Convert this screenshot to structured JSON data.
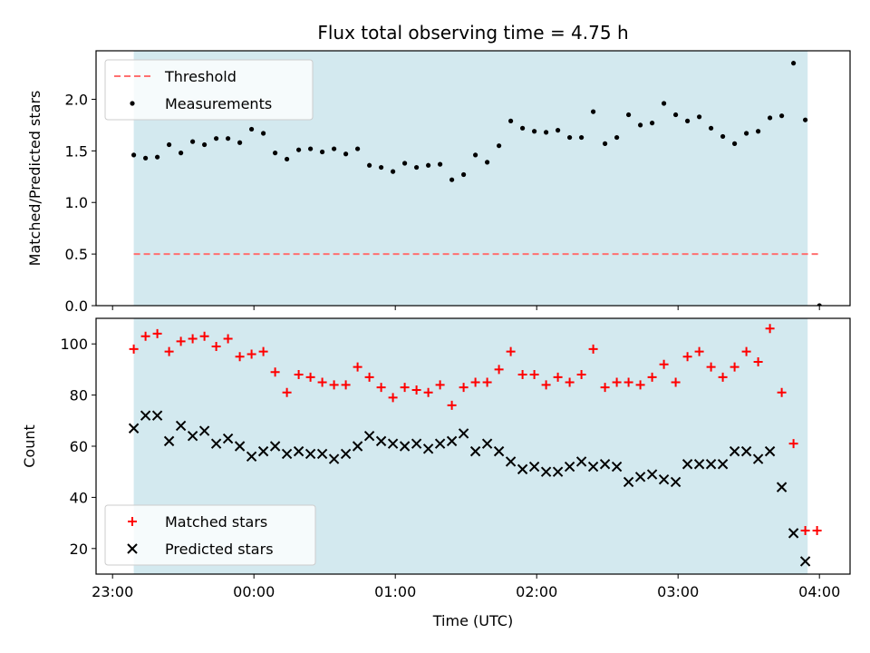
{
  "chart_data": {
    "title": "Flux total observing time = 4.75 h",
    "xlabel": "Time (UTC)",
    "x_tick_labels": [
      "23:00",
      "00:00",
      "01:00",
      "02:00",
      "03:00",
      "04:00"
    ],
    "x_ticks": [
      "23:00",
      "00:00",
      "01:00",
      "02:00",
      "03:00",
      "04:00"
    ],
    "xlim": [
      "22:53",
      "04:13"
    ],
    "shaded_interval": [
      "23:09",
      "03:55"
    ],
    "shade_color": "#d3e9ef",
    "panels": [
      {
        "type": "scatter",
        "ylabel": "Matched/Predicted stars",
        "ylim": [
          0,
          2.47
        ],
        "yticks": [
          0.0,
          0.5,
          1.0,
          1.5,
          2.0
        ],
        "ytick_labels": [
          "0.0",
          "0.5",
          "1.0",
          "1.5",
          "2.0"
        ],
        "legend_position": "upper-left",
        "threshold": {
          "name": "Threshold",
          "value": 0.5,
          "x": [
            "23:09",
            "04:00"
          ],
          "color": "#ff7070",
          "style": "dashed"
        },
        "series": [
          {
            "name": "Measurements",
            "marker": "dot",
            "color": "#000000",
            "points": [
              [
                "23:09",
                1.46
              ],
              [
                "23:14",
                1.43
              ],
              [
                "23:19",
                1.44
              ],
              [
                "23:24",
                1.56
              ],
              [
                "23:29",
                1.48
              ],
              [
                "23:34",
                1.59
              ],
              [
                "23:39",
                1.56
              ],
              [
                "23:44",
                1.62
              ],
              [
                "23:49",
                1.62
              ],
              [
                "23:54",
                1.58
              ],
              [
                "23:59",
                1.71
              ],
              [
                "00:04",
                1.67
              ],
              [
                "00:09",
                1.48
              ],
              [
                "00:14",
                1.42
              ],
              [
                "00:19",
                1.51
              ],
              [
                "00:24",
                1.52
              ],
              [
                "00:29",
                1.49
              ],
              [
                "00:34",
                1.52
              ],
              [
                "00:39",
                1.47
              ],
              [
                "00:44",
                1.52
              ],
              [
                "00:49",
                1.36
              ],
              [
                "00:54",
                1.34
              ],
              [
                "00:59",
                1.3
              ],
              [
                "01:04",
                1.38
              ],
              [
                "01:09",
                1.34
              ],
              [
                "01:14",
                1.36
              ],
              [
                "01:19",
                1.37
              ],
              [
                "01:24",
                1.22
              ],
              [
                "01:29",
                1.27
              ],
              [
                "01:34",
                1.46
              ],
              [
                "01:39",
                1.39
              ],
              [
                "01:44",
                1.55
              ],
              [
                "01:49",
                1.79
              ],
              [
                "01:54",
                1.72
              ],
              [
                "01:59",
                1.69
              ],
              [
                "02:04",
                1.68
              ],
              [
                "02:09",
                1.7
              ],
              [
                "02:14",
                1.63
              ],
              [
                "02:19",
                1.63
              ],
              [
                "02:24",
                1.88
              ],
              [
                "02:29",
                1.57
              ],
              [
                "02:34",
                1.63
              ],
              [
                "02:39",
                1.85
              ],
              [
                "02:44",
                1.75
              ],
              [
                "02:49",
                1.77
              ],
              [
                "02:54",
                1.96
              ],
              [
                "02:59",
                1.85
              ],
              [
                "03:04",
                1.79
              ],
              [
                "03:09",
                1.83
              ],
              [
                "03:14",
                1.72
              ],
              [
                "03:19",
                1.64
              ],
              [
                "03:24",
                1.57
              ],
              [
                "03:29",
                1.67
              ],
              [
                "03:34",
                1.69
              ],
              [
                "03:39",
                1.82
              ],
              [
                "03:44",
                1.84
              ],
              [
                "03:49",
                2.35
              ],
              [
                "03:54",
                1.8
              ],
              [
                "04:00",
                0.0
              ]
            ]
          }
        ]
      },
      {
        "type": "scatter",
        "ylabel": "Count",
        "ylim": [
          10,
          110
        ],
        "yticks": [
          20,
          40,
          60,
          80,
          100
        ],
        "ytick_labels": [
          "20",
          "40",
          "60",
          "80",
          "100"
        ],
        "legend_position": "lower-left",
        "series": [
          {
            "name": "Matched stars",
            "marker": "plus",
            "color": "#ff0000",
            "points": [
              [
                "23:09",
                98
              ],
              [
                "23:14",
                103
              ],
              [
                "23:19",
                104
              ],
              [
                "23:24",
                97
              ],
              [
                "23:29",
                101
              ],
              [
                "23:34",
                102
              ],
              [
                "23:39",
                103
              ],
              [
                "23:44",
                99
              ],
              [
                "23:49",
                102
              ],
              [
                "23:54",
                95
              ],
              [
                "23:59",
                96
              ],
              [
                "00:04",
                97
              ],
              [
                "00:09",
                89
              ],
              [
                "00:14",
                81
              ],
              [
                "00:19",
                88
              ],
              [
                "00:24",
                87
              ],
              [
                "00:29",
                85
              ],
              [
                "00:34",
                84
              ],
              [
                "00:39",
                84
              ],
              [
                "00:44",
                91
              ],
              [
                "00:49",
                87
              ],
              [
                "00:54",
                83
              ],
              [
                "00:59",
                79
              ],
              [
                "01:04",
                83
              ],
              [
                "01:09",
                82
              ],
              [
                "01:14",
                81
              ],
              [
                "01:19",
                84
              ],
              [
                "01:24",
                76
              ],
              [
                "01:29",
                83
              ],
              [
                "01:34",
                85
              ],
              [
                "01:39",
                85
              ],
              [
                "01:44",
                90
              ],
              [
                "01:49",
                97
              ],
              [
                "01:54",
                88
              ],
              [
                "01:59",
                88
              ],
              [
                "02:04",
                84
              ],
              [
                "02:09",
                87
              ],
              [
                "02:14",
                85
              ],
              [
                "02:19",
                88
              ],
              [
                "02:24",
                98
              ],
              [
                "02:29",
                83
              ],
              [
                "02:34",
                85
              ],
              [
                "02:39",
                85
              ],
              [
                "02:44",
                84
              ],
              [
                "02:49",
                87
              ],
              [
                "02:54",
                92
              ],
              [
                "02:59",
                85
              ],
              [
                "03:04",
                95
              ],
              [
                "03:09",
                97
              ],
              [
                "03:14",
                91
              ],
              [
                "03:19",
                87
              ],
              [
                "03:24",
                91
              ],
              [
                "03:29",
                97
              ],
              [
                "03:34",
                93
              ],
              [
                "03:39",
                106
              ],
              [
                "03:44",
                81
              ],
              [
                "03:49",
                61
              ],
              [
                "03:54",
                27
              ],
              [
                "03:59",
                27
              ]
            ]
          },
          {
            "name": "Predicted stars",
            "marker": "x",
            "color": "#000000",
            "points": [
              [
                "23:09",
                67
              ],
              [
                "23:14",
                72
              ],
              [
                "23:19",
                72
              ],
              [
                "23:24",
                62
              ],
              [
                "23:29",
                68
              ],
              [
                "23:34",
                64
              ],
              [
                "23:39",
                66
              ],
              [
                "23:44",
                61
              ],
              [
                "23:49",
                63
              ],
              [
                "23:54",
                60
              ],
              [
                "23:59",
                56
              ],
              [
                "00:04",
                58
              ],
              [
                "00:09",
                60
              ],
              [
                "00:14",
                57
              ],
              [
                "00:19",
                58
              ],
              [
                "00:24",
                57
              ],
              [
                "00:29",
                57
              ],
              [
                "00:34",
                55
              ],
              [
                "00:39",
                57
              ],
              [
                "00:44",
                60
              ],
              [
                "00:49",
                64
              ],
              [
                "00:54",
                62
              ],
              [
                "00:59",
                61
              ],
              [
                "01:04",
                60
              ],
              [
                "01:09",
                61
              ],
              [
                "01:14",
                59
              ],
              [
                "01:19",
                61
              ],
              [
                "01:24",
                62
              ],
              [
                "01:29",
                65
              ],
              [
                "01:34",
                58
              ],
              [
                "01:39",
                61
              ],
              [
                "01:44",
                58
              ],
              [
                "01:49",
                54
              ],
              [
                "01:54",
                51
              ],
              [
                "01:59",
                52
              ],
              [
                "02:04",
                50
              ],
              [
                "02:09",
                50
              ],
              [
                "02:14",
                52
              ],
              [
                "02:19",
                54
              ],
              [
                "02:24",
                52
              ],
              [
                "02:29",
                53
              ],
              [
                "02:34",
                52
              ],
              [
                "02:39",
                46
              ],
              [
                "02:44",
                48
              ],
              [
                "02:49",
                49
              ],
              [
                "02:54",
                47
              ],
              [
                "02:59",
                46
              ],
              [
                "03:04",
                53
              ],
              [
                "03:09",
                53
              ],
              [
                "03:14",
                53
              ],
              [
                "03:19",
                53
              ],
              [
                "03:24",
                58
              ],
              [
                "03:29",
                58
              ],
              [
                "03:34",
                55
              ],
              [
                "03:39",
                58
              ],
              [
                "03:44",
                44
              ],
              [
                "03:49",
                26
              ],
              [
                "03:54",
                15
              ]
            ]
          }
        ]
      }
    ]
  }
}
